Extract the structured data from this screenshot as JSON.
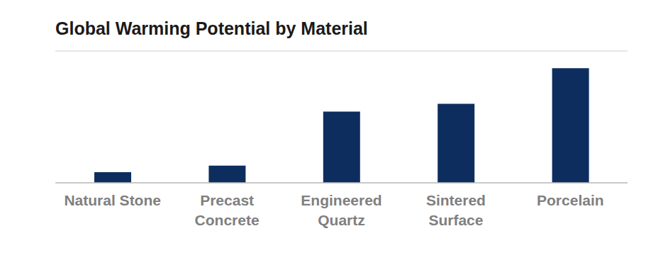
{
  "chart_data": {
    "type": "bar",
    "title": "Global Warming Potential by Material",
    "categories": [
      "Natural Stone",
      "Precast Concrete",
      "Engineered Quartz",
      "Sintered Surface",
      "Porcelain"
    ],
    "values": [
      0.8,
      1.3,
      5.4,
      6.0,
      8.7
    ],
    "color": "#0d2d5e",
    "ylim": [
      0,
      10
    ],
    "yticks": [
      0,
      1,
      2,
      3,
      4,
      5,
      6,
      7,
      8,
      9,
      10
    ],
    "grid": true,
    "tick_labels": "x"
  }
}
